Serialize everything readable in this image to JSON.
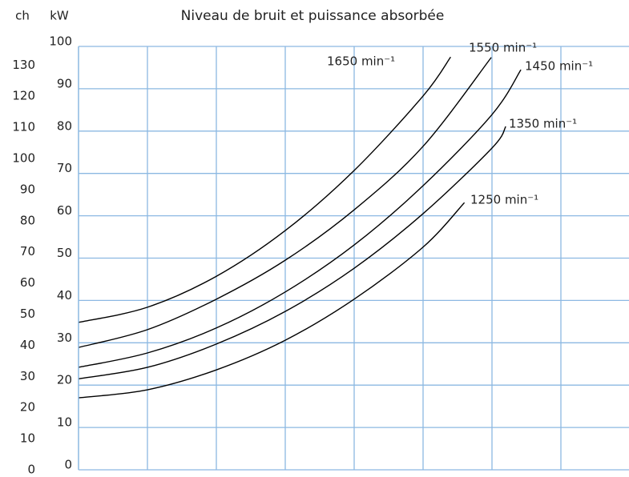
{
  "chart_data": {
    "type": "line",
    "title": "Niveau de bruit et puissance absorbée",
    "y_label": "kW",
    "y2_label": "ch",
    "xlim": [
      0,
      8
    ],
    "xticks": [
      0,
      1,
      2,
      3,
      4,
      5,
      6,
      7,
      8
    ],
    "ylim": [
      0,
      100
    ],
    "yticks": [
      0,
      10,
      20,
      30,
      40,
      50,
      60,
      70,
      80,
      90,
      100
    ],
    "y2lim": [
      0,
      136
    ],
    "y2ticks": [
      0,
      10,
      20,
      30,
      40,
      50,
      60,
      70,
      80,
      90,
      100,
      110,
      120,
      130
    ],
    "grid": true,
    "series": [
      {
        "name": "1650 min⁻¹",
        "color": "#000000",
        "x": [
          0,
          1,
          2,
          3,
          4,
          5,
          5.4
        ],
        "values": [
          34.8,
          38.4,
          45.7,
          56.5,
          70.7,
          88.3,
          97.5
        ]
      },
      {
        "name": "1550 min⁻¹",
        "color": "#000000",
        "x": [
          0,
          1,
          2,
          3,
          4,
          5,
          5.99
        ],
        "values": [
          28.9,
          33.1,
          40.3,
          49.5,
          61.4,
          76.4,
          97.4
        ]
      },
      {
        "name": "1450 min⁻¹",
        "color": "#000000",
        "x": [
          0,
          1,
          2,
          3,
          4,
          5,
          6,
          6.42
        ],
        "values": [
          24.2,
          27.6,
          33.5,
          42,
          53.1,
          67.1,
          83.9,
          94.5
        ]
      },
      {
        "name": "1350 min⁻¹",
        "color": "#000000",
        "x": [
          0,
          1,
          2,
          3,
          4,
          5,
          6,
          6.2
        ],
        "values": [
          21.5,
          24.2,
          29.7,
          37.4,
          47.6,
          60.5,
          76,
          81.1
        ]
      },
      {
        "name": "1250 min⁻¹",
        "color": "#000000",
        "x": [
          0,
          1,
          2,
          3,
          4,
          5,
          5.6
        ],
        "values": [
          17,
          18.9,
          23.6,
          30.6,
          40.3,
          52.6,
          63.1
        ]
      }
    ]
  }
}
